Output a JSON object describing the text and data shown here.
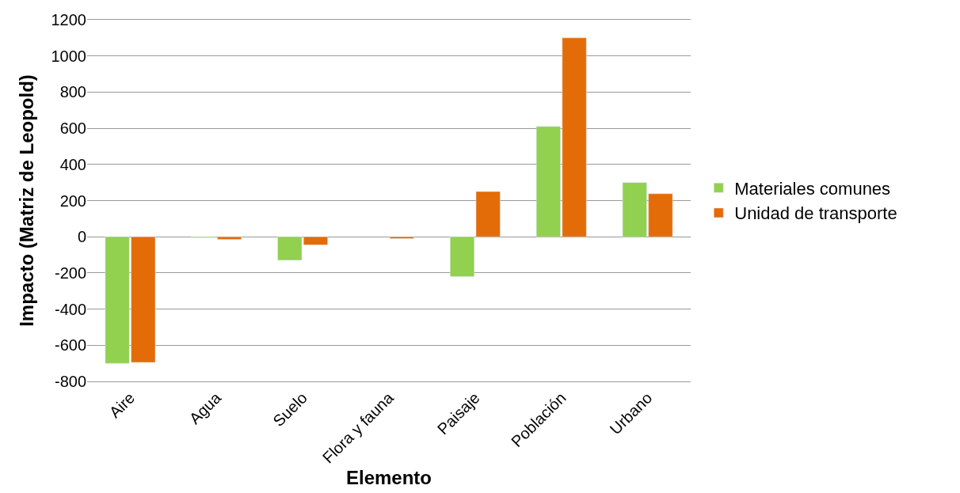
{
  "chart_data": {
    "type": "bar",
    "xlabel": "Elemento",
    "ylabel": "Impacto (Matriz de Leopold)",
    "categories": [
      "Aire",
      "Agua",
      "Suelo",
      "Flora y fauna",
      "Paisaje",
      "Población",
      "Urbano"
    ],
    "series": [
      {
        "name": "Materiales comunes",
        "color": "#92d050",
        "values": [
          -700,
          -5,
          -130,
          null,
          -220,
          610,
          300
        ]
      },
      {
        "name": "Unidad de transporte",
        "color": "#e36c09",
        "values": [
          -695,
          -15,
          -45,
          -10,
          250,
          1100,
          238
        ]
      }
    ],
    "ylim": [
      -800,
      1200
    ],
    "yticks": [
      -800,
      -600,
      -400,
      -200,
      0,
      200,
      400,
      600,
      800,
      1000,
      1200
    ],
    "grid": "y",
    "legend": "right"
  }
}
